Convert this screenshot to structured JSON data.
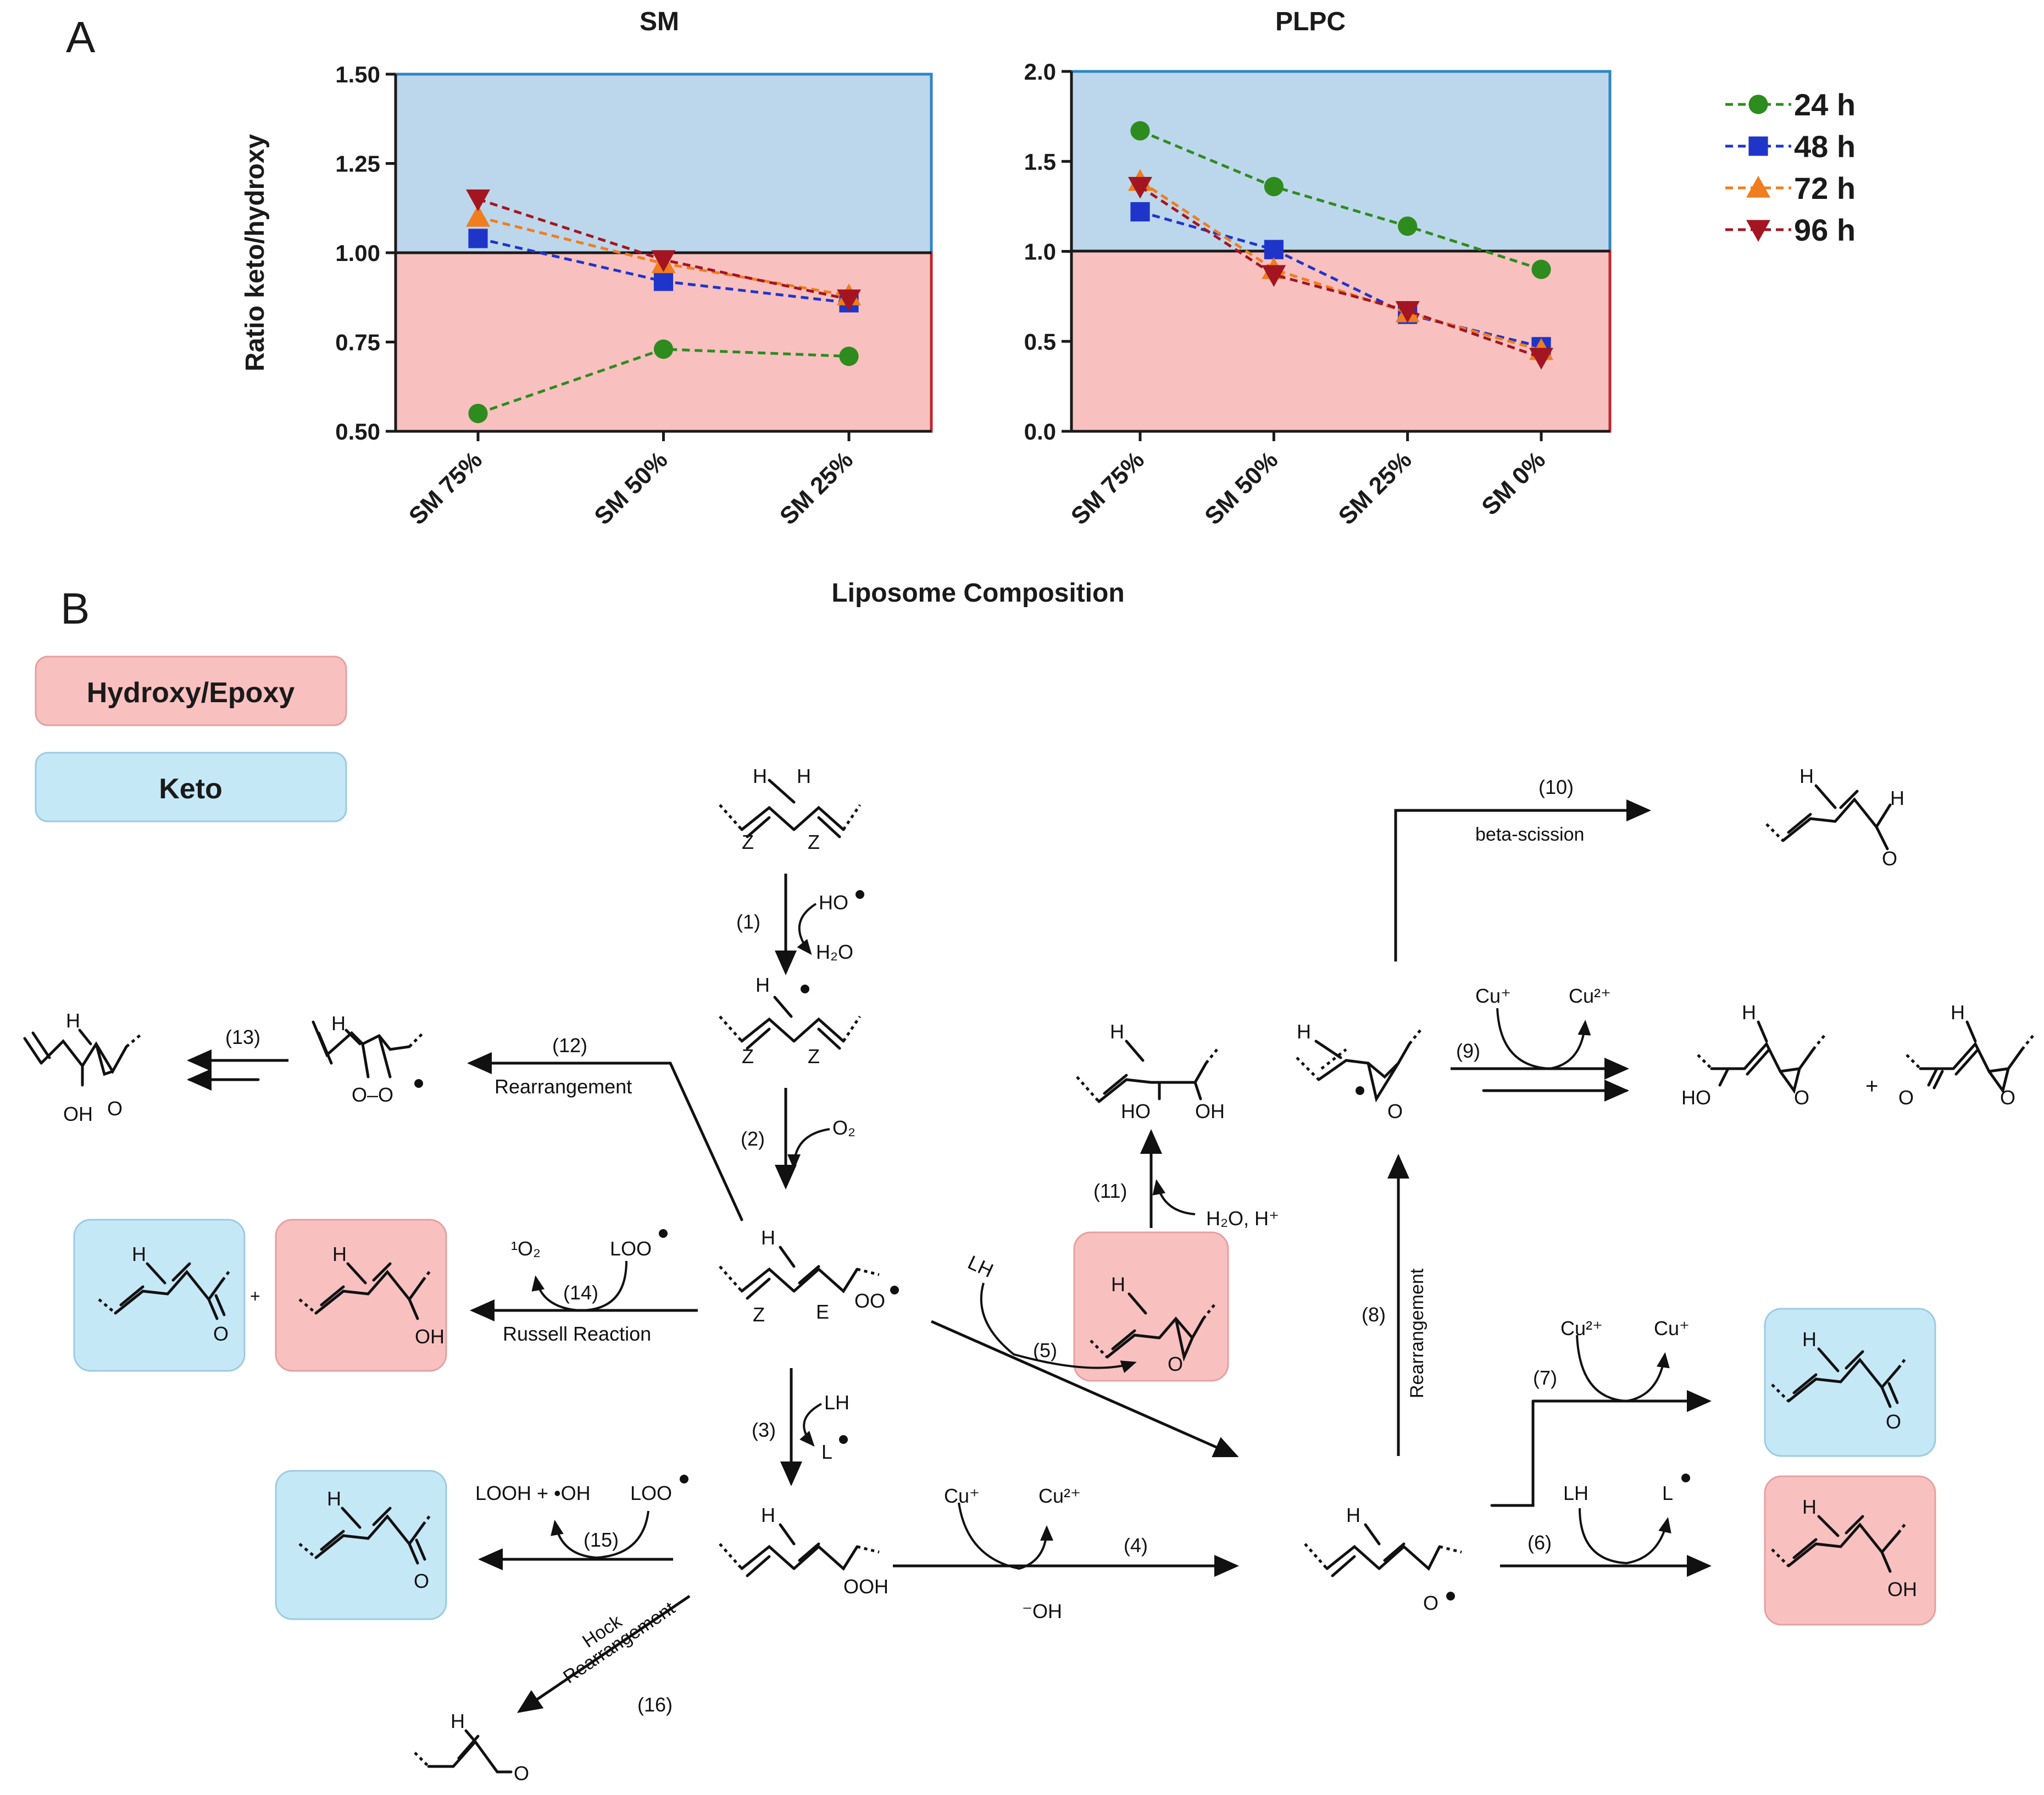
{
  "panel_labels": {
    "a": "A",
    "b": "B"
  },
  "shared_xlabel": "Liposome Composition",
  "chart_data": [
    {
      "type": "line",
      "title": "SM",
      "ylabel": "Ratio keto/hydroxy",
      "categories": [
        "SM 75%",
        "SM 50%",
        "SM 25%"
      ],
      "ylim": [
        0.5,
        1.5
      ],
      "yticks": [
        "0.50",
        "0.75",
        "1.00",
        "1.25",
        "1.50"
      ],
      "threshold": 1.0,
      "series": [
        {
          "name": "24 h",
          "values": [
            0.55,
            0.73,
            0.71
          ]
        },
        {
          "name": "48 h",
          "values": [
            1.04,
            0.92,
            0.86
          ]
        },
        {
          "name": "72 h",
          "values": [
            1.1,
            0.97,
            0.88
          ]
        },
        {
          "name": "96 h",
          "values": [
            1.15,
            0.98,
            0.87
          ]
        }
      ]
    },
    {
      "type": "line",
      "title": "PLPC",
      "ylabel": "",
      "categories": [
        "SM 75%",
        "SM 50%",
        "SM 25%",
        "SM 0%"
      ],
      "ylim": [
        0.0,
        2.0
      ],
      "yticks": [
        "0.0",
        "0.5",
        "1.0",
        "1.5",
        "2.0"
      ],
      "threshold": 1.0,
      "series": [
        {
          "name": "24 h",
          "values": [
            1.67,
            1.36,
            1.14,
            0.9
          ]
        },
        {
          "name": "48 h",
          "values": [
            1.22,
            1.01,
            0.65,
            0.47
          ]
        },
        {
          "name": "72 h",
          "values": [
            1.39,
            0.9,
            0.66,
            0.45
          ]
        },
        {
          "name": "96 h",
          "values": [
            1.36,
            0.87,
            0.67,
            0.41
          ]
        }
      ]
    }
  ],
  "legend": [
    {
      "label": "24 h",
      "color": "#2e8b1e",
      "marker": "circle"
    },
    {
      "label": "48 h",
      "color": "#1f35c9",
      "marker": "square"
    },
    {
      "label": "72 h",
      "color": "#f07d1e",
      "marker": "triangle-up"
    },
    {
      "label": "96 h",
      "color": "#a31621",
      "marker": "triangle-down"
    }
  ],
  "colors": {
    "keto_region": "#bcd7ec",
    "hydroxy_region": "#f9c0c0",
    "keto_border": "#2f86c4",
    "hydroxy_border": "#c0272d"
  },
  "key": {
    "hydroxy_epoxy": "Hydroxy/Epoxy",
    "keto": "Keto"
  },
  "steps": [
    "(1)",
    "(2)",
    "(3)",
    "(4)",
    "(5)",
    "(6)",
    "(7)",
    "(8)",
    "(9)",
    "(10)",
    "(11)",
    "(12)",
    "(13)",
    "(14)",
    "(15)",
    "(16)"
  ],
  "reagents": {
    "ho_radical": "HO",
    "h2o": "H₂O",
    "o2": "O₂",
    "lh": "LH",
    "l_radical": "L",
    "cu_plus": "Cu⁺",
    "cu_2plus": "Cu²⁺",
    "oh_minus": "⁻OH",
    "h2o_h": "H₂O, H⁺",
    "singlet_o2": "¹O₂",
    "loo": "LOO",
    "looh_oh": "LOOH + •OH"
  },
  "reaction_names": {
    "beta_scission": "beta-scission",
    "rearrangement": "Rearrangement",
    "russell": "Russell Reaction",
    "hock_1": "Hock",
    "hock_2": "Rearrangement"
  },
  "atoms": {
    "h": "H",
    "z": "Z",
    "e": "E",
    "oh": "OH",
    "o": "O",
    "ho": "HO",
    "oo": "OO",
    "ooh": "OOH",
    "o_o": "O–O",
    "plus": "+"
  }
}
